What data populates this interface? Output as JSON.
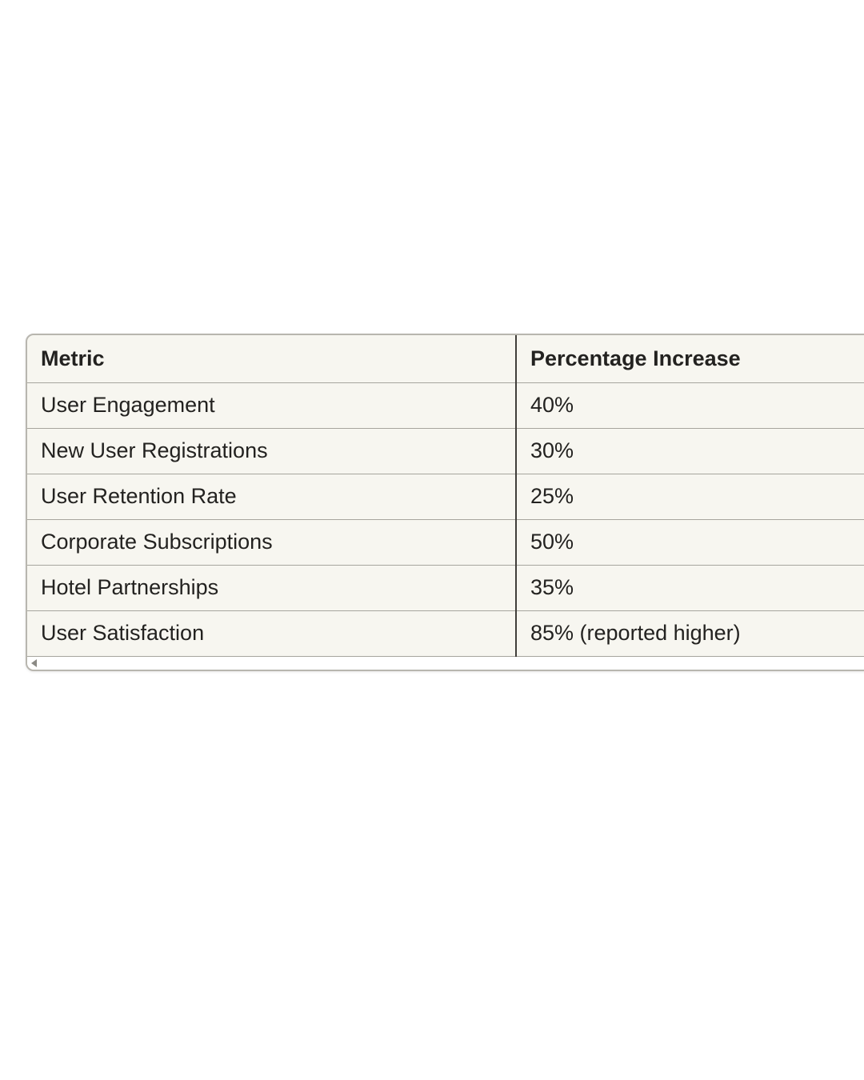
{
  "table": {
    "columns": [
      "Metric",
      "Percentage Increase"
    ],
    "rows": [
      [
        "User Engagement",
        "40%"
      ],
      [
        "New User Registrations",
        "30%"
      ],
      [
        "User Retention Rate",
        "25%"
      ],
      [
        "Corporate Subscriptions",
        "50%"
      ],
      [
        "Hotel Partnerships",
        "35%"
      ],
      [
        "User Satisfaction",
        "85% (reported higher)"
      ]
    ],
    "colors": {
      "card_background": "#f7f6f0",
      "outer_border": "#b8b6af",
      "row_divider": "#a7a59e",
      "column_divider": "#403e3a",
      "text": "#232220",
      "scrollbar_track": "#ffffff",
      "scroll_arrow": "#8b8a85"
    }
  },
  "chart_data": {
    "type": "table",
    "title": "",
    "categories": [
      "User Engagement",
      "New User Registrations",
      "User Retention Rate",
      "Corporate Subscriptions",
      "Hotel Partnerships",
      "User Satisfaction"
    ],
    "values": [
      40,
      30,
      25,
      50,
      35,
      85
    ],
    "value_labels": [
      "40%",
      "30%",
      "25%",
      "50%",
      "35%",
      "85% (reported higher)"
    ],
    "column_headers": [
      "Metric",
      "Percentage Increase"
    ]
  }
}
